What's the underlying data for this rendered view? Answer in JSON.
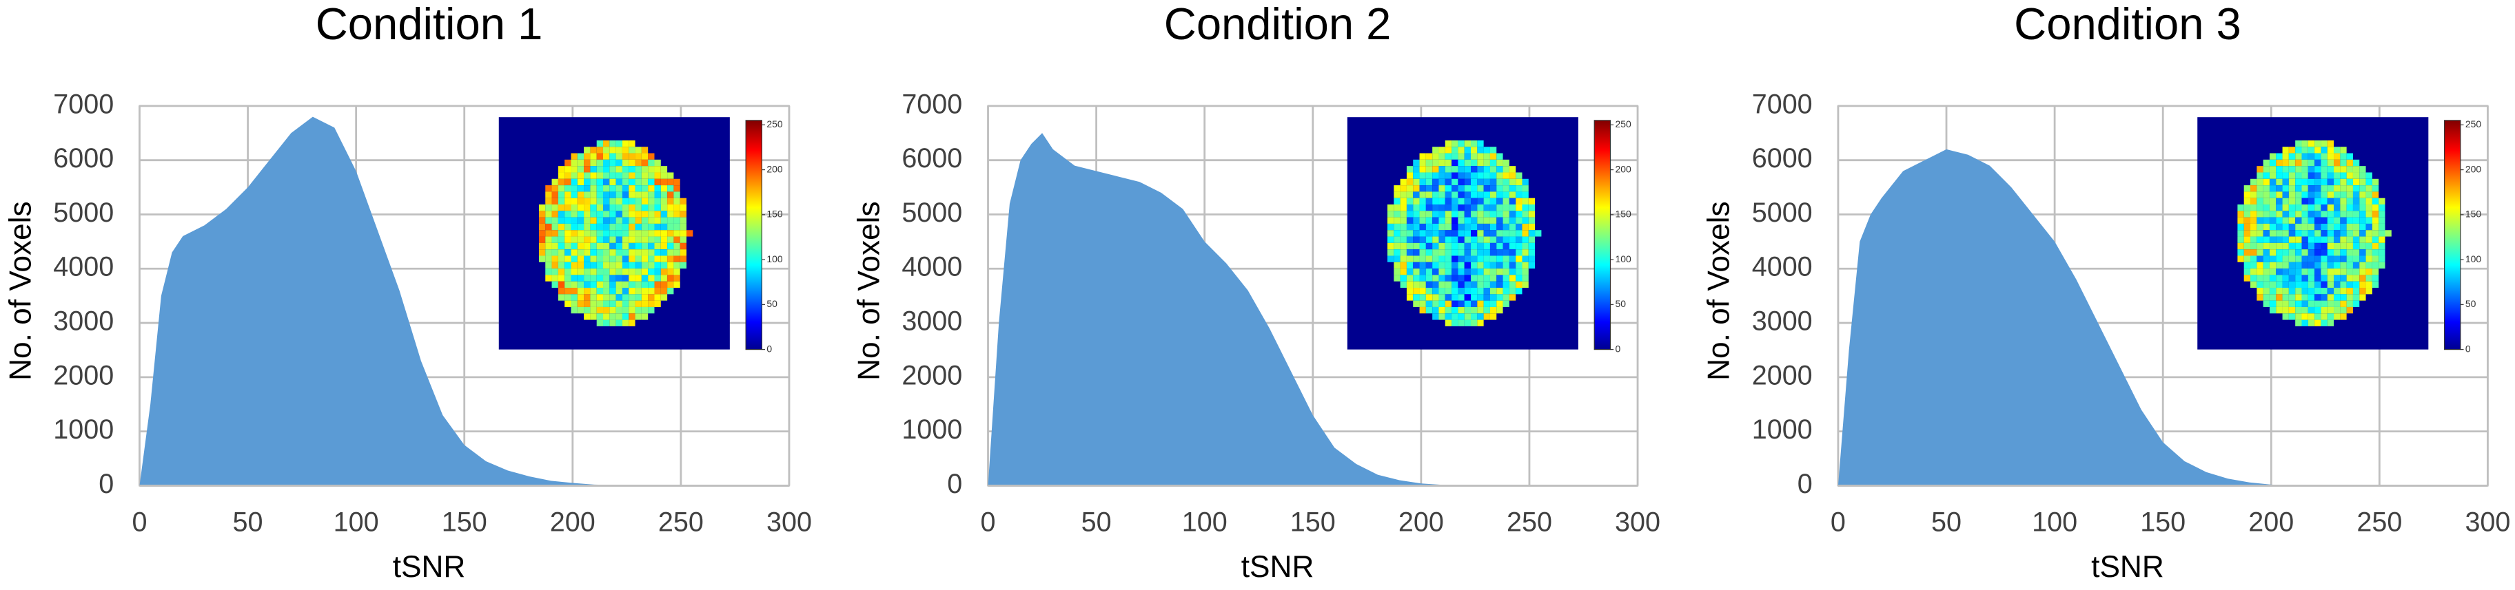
{
  "chart_data": [
    {
      "type": "area",
      "title": "Condition 1",
      "xlabel": "tSNR",
      "ylabel": "No. of Voxels",
      "color": "#5b9bd5",
      "grid": true,
      "x": [
        0,
        5,
        10,
        15,
        20,
        30,
        40,
        50,
        60,
        70,
        80,
        90,
        100,
        110,
        120,
        130,
        140,
        150,
        160,
        170,
        180,
        190,
        200,
        210,
        220,
        230
      ],
      "values": [
        0,
        1500,
        3500,
        4300,
        4600,
        4800,
        5100,
        5500,
        6000,
        6500,
        6800,
        6600,
        5800,
        4700,
        3600,
        2300,
        1300,
        750,
        450,
        280,
        170,
        90,
        50,
        20,
        10,
        0
      ],
      "xlim": [
        0,
        300
      ],
      "xticks": [
        0,
        50,
        100,
        150,
        200,
        250,
        300
      ],
      "ylim": [
        0,
        7000
      ],
      "yticks": [
        0,
        1000,
        2000,
        3000,
        4000,
        5000,
        6000,
        7000
      ],
      "colorbar_lim": [
        0,
        255
      ],
      "colorbar_ticks": [
        0,
        50,
        100,
        150,
        200,
        250
      ]
    },
    {
      "type": "area",
      "title": "Condition 2",
      "xlabel": "tSNR",
      "ylabel": "No. of Voxels",
      "color": "#5b9bd5",
      "grid": true,
      "x": [
        0,
        5,
        10,
        15,
        20,
        25,
        30,
        40,
        50,
        60,
        70,
        80,
        90,
        100,
        110,
        120,
        130,
        140,
        150,
        160,
        170,
        180,
        190,
        200,
        210,
        220
      ],
      "values": [
        0,
        3000,
        5200,
        6000,
        6300,
        6500,
        6200,
        5900,
        5800,
        5700,
        5600,
        5400,
        5100,
        4500,
        4100,
        3600,
        2900,
        2100,
        1300,
        700,
        400,
        200,
        100,
        40,
        15,
        0
      ],
      "xlim": [
        0,
        300
      ],
      "xticks": [
        0,
        50,
        100,
        150,
        200,
        250,
        300
      ],
      "ylim": [
        0,
        7000
      ],
      "yticks": [
        0,
        1000,
        2000,
        3000,
        4000,
        5000,
        6000,
        7000
      ],
      "colorbar_lim": [
        0,
        255
      ],
      "colorbar_ticks": [
        0,
        50,
        100,
        150,
        200,
        250
      ]
    },
    {
      "type": "area",
      "title": "Condition 3",
      "xlabel": "tSNR",
      "ylabel": "No. of Voxels",
      "color": "#5b9bd5",
      "grid": true,
      "x": [
        0,
        5,
        10,
        15,
        20,
        30,
        40,
        50,
        60,
        70,
        80,
        90,
        100,
        110,
        120,
        130,
        140,
        150,
        160,
        170,
        180,
        190,
        200,
        210
      ],
      "values": [
        0,
        2500,
        4500,
        5000,
        5300,
        5800,
        6000,
        6200,
        6100,
        5900,
        5500,
        5000,
        4500,
        3800,
        3000,
        2200,
        1400,
        800,
        450,
        250,
        130,
        60,
        20,
        0
      ],
      "xlim": [
        0,
        300
      ],
      "xticks": [
        0,
        50,
        100,
        150,
        200,
        250,
        300
      ],
      "ylim": [
        0,
        7000
      ],
      "yticks": [
        0,
        1000,
        2000,
        3000,
        4000,
        5000,
        6000,
        7000
      ],
      "colorbar_lim": [
        0,
        255
      ],
      "colorbar_ticks": [
        0,
        50,
        100,
        150,
        200,
        250
      ]
    }
  ]
}
